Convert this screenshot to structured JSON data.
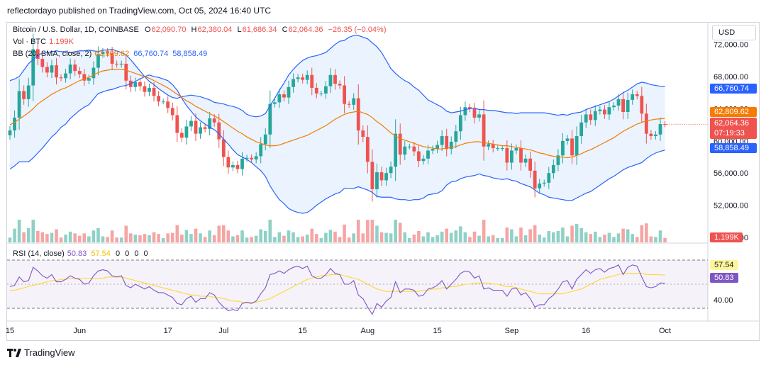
{
  "publisher_line": "reflectordayo published on TradingView.com, Oct 05, 2024 16:40 UTC",
  "legend": {
    "symbol": "Bitcoin / U.S. Dollar, 1D, COINBASE",
    "o_label": "O",
    "o": "62,090.70",
    "h_label": "H",
    "h": "62,380.04",
    "l_label": "L",
    "l": "61,686.34",
    "c_label": "C",
    "c": "62,064.36",
    "change": "−26.35 (−0.04%)",
    "vol_label": "Vol · BTC",
    "vol": "1.199K",
    "bb_label": "BB (20, SMA, close, 2)",
    "bb_mid": "62,809.62",
    "bb_up": "66,760.74",
    "bb_low": "58,858.49",
    "rsi_label": "RSI (14, close)",
    "rsi": "50.83",
    "rsi_ma": "57.54",
    "rsi_extra": [
      "0",
      "0",
      "0",
      "0"
    ]
  },
  "currency_button": "USD",
  "price_tags": {
    "upper": "66,760.74",
    "mid": "62,809.62",
    "last": "62,064.36",
    "countdown": "07:19:33",
    "lower": "58,858.49",
    "vol": "1.199K",
    "rsi_ma": "57.54",
    "rsi": "50.83"
  },
  "colors": {
    "up": "#26a69a",
    "down": "#ef5350",
    "bb_band": "#2962ff",
    "bb_basis": "#f57c00",
    "bb_fill": "#e3effd",
    "rsi": "#7e57c2",
    "rsi_ma": "#fdd835",
    "vol_up": "#8fd1c6",
    "vol_down": "#f5a5a3"
  },
  "footer": {
    "brand": "TradingView",
    "logo_icon": "tradingview-logo-icon"
  },
  "chart_data": {
    "type": "candlestick",
    "price_axis": {
      "ticks": [
        "72,000.00",
        "68,000.00",
        "64,000.00",
        "60,000.00",
        "56,000.00",
        "52,000.00",
        "48,000.00"
      ],
      "values": [
        72000,
        68000,
        64000,
        60000,
        56000,
        52000,
        48000
      ],
      "ylim": [
        48000,
        74000
      ]
    },
    "rsi_axis": {
      "ticks": [
        "40.00"
      ],
      "upper_band": 70,
      "lower_band": 30,
      "ylim": [
        20,
        80
      ]
    },
    "time_axis": {
      "labels": [
        "15",
        "Jun",
        "17",
        "Jul",
        "15",
        "Aug",
        "15",
        "Sep",
        "16",
        "Oct"
      ],
      "bar_index": [
        0,
        15,
        34,
        46,
        63,
        77,
        92,
        108,
        124,
        141
      ]
    },
    "first_bar_date": "2024-05-13",
    "closes": [
      61300,
      62900,
      66200,
      65200,
      66900,
      71400,
      70200,
      69200,
      68500,
      69400,
      67900,
      67800,
      68400,
      69500,
      68700,
      68300,
      67500,
      67800,
      69100,
      70800,
      71100,
      70900,
      69600,
      69500,
      69600,
      67500,
      66700,
      67300,
      66800,
      66100,
      66600,
      65600,
      64900,
      64900,
      64100,
      63200,
      61000,
      60400,
      61800,
      62500,
      60900,
      61700,
      61500,
      62800,
      62300,
      60200,
      58000,
      56700,
      57000,
      56500,
      57800,
      57900,
      57700,
      58100,
      59600,
      60800,
      64600,
      64800,
      65800,
      65400,
      66700,
      67700,
      67900,
      67600,
      68200,
      66600,
      65900,
      65900,
      66800,
      68200,
      67100,
      66900,
      64600,
      64500,
      65300,
      61300,
      60500,
      57400,
      54000,
      56100,
      55100,
      56000,
      56800,
      60900,
      58300,
      59300,
      59300,
      58700,
      57500,
      57800,
      58800,
      59000,
      59500,
      60600,
      59000,
      59900,
      61200,
      63200,
      64200,
      64000,
      62900,
      63300,
      59300,
      59600,
      59100,
      59100,
      59100,
      57300,
      58800,
      59100,
      57300,
      57800,
      56300,
      54100,
      54700,
      54800,
      56000,
      57000,
      58200,
      60000,
      60300,
      58200,
      60600,
      62300,
      63300,
      62600,
      63700,
      63900,
      63300,
      64200,
      64400,
      65200,
      63600,
      65100,
      65800,
      65600,
      63400,
      60900,
      60600,
      60800,
      62100,
      62064
    ],
    "bb_upper": [
      67500,
      67700,
      68000,
      68800,
      69600,
      70100,
      70700,
      70900,
      71000,
      71100,
      71200,
      71100,
      71100,
      71000,
      71100,
      71200,
      71200,
      71300,
      71200,
      71100,
      71300,
      71300,
      71400,
      71200,
      71000,
      70700,
      70100,
      69400,
      68700,
      68000,
      67400,
      67000,
      66500,
      66100,
      65700,
      65400,
      65300,
      65500,
      65600,
      65700,
      65600,
      65500,
      65300,
      65100,
      64800,
      64700,
      64600,
      64400,
      64300,
      64100,
      63800,
      63300,
      63100,
      63000,
      63100,
      63400,
      64400,
      65300,
      66300,
      67200,
      68200,
      68900,
      69500,
      70000,
      70300,
      70500,
      70600,
      70800,
      71000,
      71500,
      72000,
      72400,
      72500,
      72900,
      73100,
      73100,
      72900,
      72700,
      72200,
      71700,
      71000,
      70000,
      69000,
      68400,
      67900,
      67500,
      67200,
      66700,
      66300,
      65700,
      65100,
      64800,
      64500,
      64200,
      63700,
      63500,
      63600,
      63700,
      63900,
      64000,
      64100,
      63900,
      63900,
      63800,
      63800,
      63700,
      63600,
      63500,
      63500,
      63400,
      63500,
      63500,
      63500,
      63500,
      63500,
      63500,
      63400,
      63300,
      63200,
      63300,
      63200,
      63400,
      63500,
      63600,
      63900,
      64100,
      64300,
      64500,
      64700,
      64900,
      65200,
      65600,
      66000,
      66300,
      66700,
      67100,
      67300,
      67200,
      67000,
      66900,
      66800,
      66760.74
    ],
    "bb_basis": [
      62000,
      62300,
      62700,
      63100,
      63500,
      64000,
      64600,
      65000,
      65400,
      65800,
      66100,
      66400,
      66600,
      66900,
      67200,
      67500,
      67700,
      67900,
      68200,
      68500,
      68700,
      68800,
      68900,
      68900,
      68900,
      68800,
      68600,
      68400,
      68200,
      68000,
      67800,
      67500,
      67200,
      66900,
      66600,
      66200,
      65800,
      65400,
      65000,
      64700,
      64300,
      64000,
      63700,
      63400,
      63100,
      62800,
      62400,
      62000,
      61600,
      61200,
      60900,
      60500,
      60200,
      59900,
      59700,
      59500,
      59400,
      59400,
      59500,
      59700,
      59900,
      60100,
      60300,
      60500,
      60700,
      61000,
      61300,
      61600,
      61900,
      62300,
      62700,
      63000,
      63300,
      63500,
      63600,
      63700,
      63500,
      63300,
      62900,
      62400,
      62000,
      61500,
      61000,
      60600,
      60300,
      60100,
      59900,
      59700,
      59500,
      59300,
      59200,
      59100,
      59000,
      59000,
      59100,
      59200,
      59300,
      59500,
      59700,
      59800,
      59900,
      59900,
      59800,
      59700,
      59600,
      59500,
      59400,
      59400,
      59300,
      59200,
      59100,
      59000,
      58900,
      58700,
      58500,
      58400,
      58200,
      58100,
      58000,
      58000,
      57900,
      58000,
      58200,
      58400,
      58700,
      58900,
      59200,
      59500,
      59800,
      60100,
      60400,
      60800,
      61200,
      61500,
      61800,
      62100,
      62300,
      62500,
      62600,
      62700,
      62750,
      62809.62
    ],
    "bb_lower": [
      56500,
      56900,
      57400,
      57400,
      57400,
      57900,
      58500,
      59100,
      59800,
      60500,
      61000,
      61700,
      62100,
      62800,
      63300,
      63800,
      64200,
      64500,
      65200,
      65900,
      66100,
      66300,
      66400,
      66600,
      66800,
      66900,
      67100,
      67400,
      67700,
      68000,
      68200,
      68000,
      67900,
      67700,
      67500,
      67000,
      66300,
      65300,
      64400,
      63700,
      63000,
      62500,
      62100,
      61700,
      61400,
      60900,
      60200,
      59600,
      58900,
      58300,
      58000,
      57700,
      57300,
      56800,
      56300,
      55600,
      54400,
      53500,
      52700,
      52200,
      51600,
      51300,
      51100,
      51000,
      51100,
      51500,
      52000,
      52400,
      52800,
      53100,
      53400,
      53600,
      54100,
      54100,
      54100,
      54300,
      54100,
      53900,
      53600,
      53100,
      53000,
      53000,
      53000,
      52800,
      52700,
      52700,
      52600,
      52700,
      52700,
      52900,
      53300,
      53400,
      53500,
      53800,
      54500,
      54900,
      55000,
      55300,
      55500,
      55600,
      55700,
      55900,
      55700,
      55600,
      55400,
      55300,
      55200,
      55300,
      55100,
      55000,
      54700,
      54500,
      54300,
      53900,
      53500,
      53300,
      53000,
      52900,
      52800,
      52700,
      52600,
      52600,
      52900,
      53200,
      53500,
      53700,
      54100,
      54500,
      54900,
      55300,
      55600,
      56000,
      56400,
      56700,
      56900,
      57100,
      57300,
      57800,
      58200,
      58500,
      58700,
      58858.49
    ],
    "rsi": [
      48,
      49,
      56,
      52,
      53,
      64,
      61,
      57,
      55,
      58,
      52,
      52,
      54,
      57,
      55,
      54,
      50,
      51,
      57,
      61,
      62,
      61,
      57,
      56,
      57,
      49,
      47,
      50,
      48,
      46,
      48,
      45,
      43,
      43,
      41,
      39,
      34,
      33,
      38,
      40,
      35,
      38,
      38,
      43,
      41,
      35,
      31,
      28,
      29,
      28,
      34,
      35,
      34,
      36,
      42,
      47,
      58,
      59,
      61,
      59,
      62,
      64,
      65,
      63,
      65,
      57,
      55,
      55,
      58,
      63,
      59,
      58,
      50,
      50,
      53,
      41,
      38,
      31,
      25,
      34,
      31,
      36,
      39,
      52,
      43,
      46,
      46,
      45,
      40,
      41,
      46,
      47,
      49,
      53,
      46,
      50,
      54,
      59,
      61,
      60,
      55,
      57,
      46,
      47,
      45,
      45,
      45,
      40,
      46,
      47,
      41,
      43,
      38,
      31,
      33,
      33,
      38,
      41,
      46,
      52,
      53,
      46,
      54,
      58,
      62,
      59,
      62,
      63,
      60,
      63,
      64,
      66,
      58,
      64,
      66,
      65,
      56,
      48,
      47,
      48,
      51,
      50.83
    ],
    "rsi_ma": [
      45,
      45,
      46,
      47,
      48,
      49,
      50,
      51,
      52,
      53,
      53,
      54,
      54,
      55,
      55,
      55,
      55,
      55,
      55,
      55,
      55,
      56,
      56,
      56,
      56,
      55,
      54,
      53,
      52,
      51,
      50,
      49,
      48,
      47,
      46,
      45,
      44,
      43,
      42,
      41,
      41,
      40,
      40,
      40,
      39,
      39,
      38,
      37,
      36,
      36,
      35,
      35,
      35,
      35,
      36,
      37,
      38,
      40,
      42,
      44,
      46,
      48,
      50,
      52,
      54,
      55,
      56,
      57,
      57,
      58,
      58,
      58,
      57,
      56,
      55,
      54,
      52,
      50,
      48,
      46,
      45,
      44,
      44,
      44,
      44,
      44,
      44,
      44,
      44,
      45,
      45,
      46,
      46,
      47,
      47,
      48,
      48,
      49,
      50,
      50,
      51,
      51,
      51,
      51,
      50,
      50,
      49,
      48,
      48,
      47,
      46,
      45,
      44,
      43,
      42,
      42,
      42,
      42,
      42,
      42,
      43,
      44,
      45,
      46,
      48,
      50,
      52,
      54,
      55,
      56,
      57,
      58,
      59,
      59,
      59,
      59,
      59,
      58,
      58,
      58,
      57.8,
      57.54
    ]
  }
}
